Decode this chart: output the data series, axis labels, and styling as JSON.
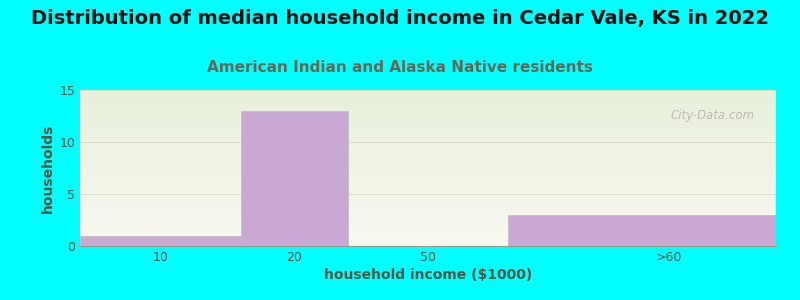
{
  "title": "Distribution of median household income in Cedar Vale, KS in 2022",
  "subtitle": "American Indian and Alaska Native residents",
  "xlabel": "household income ($1000)",
  "ylabel": "households",
  "bar_edges": [
    0,
    15,
    25,
    40,
    65
  ],
  "values": [
    1,
    13,
    0,
    3
  ],
  "x_tick_positions": [
    7.5,
    20,
    32.5,
    55
  ],
  "x_tick_labels": [
    "10",
    "20",
    "50",
    ">60"
  ],
  "bar_color": "#c9a8d4",
  "bar_edge_color": "#bbbbbb",
  "ylim": [
    0,
    15
  ],
  "xlim": [
    0,
    65
  ],
  "yticks": [
    0,
    5,
    10,
    15
  ],
  "background_color": "#00FFFF",
  "plot_bg_top": "#e8f0dc",
  "plot_bg_bottom": "#f8f8f0",
  "title_fontsize": 14,
  "subtitle_fontsize": 11,
  "subtitle_color": "#666655",
  "axis_label_fontsize": 10,
  "tick_label_color": "#555544",
  "watermark": "City-Data.com"
}
